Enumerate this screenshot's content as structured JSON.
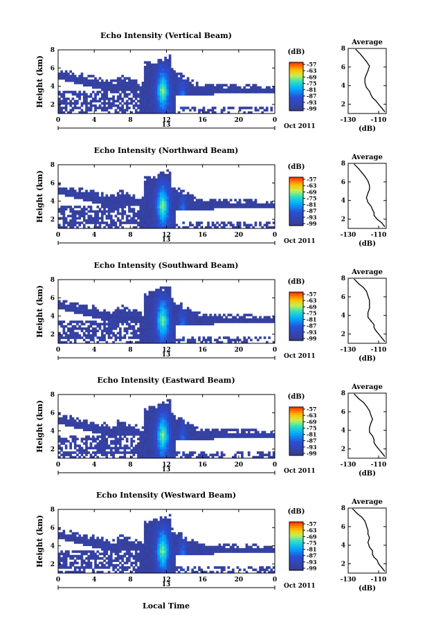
{
  "figure": {
    "xlabel": "Local Time",
    "date_label": "Oct 2011",
    "day_label": "13",
    "colorbar_unit": "(dB)",
    "colorbar_ticks": [
      "-57",
      "-63",
      "-69",
      "-75",
      "-81",
      "-87",
      "-93",
      "-99"
    ],
    "colors": {
      "low": "#3a3c8c",
      "mid": "#00aaff",
      "high": "#ff2a00",
      "panel_border": "#000000"
    }
  },
  "chart_data": [
    {
      "type": "heatmap",
      "title": "Echo Intensity (Vertical Beam)",
      "ylabel": "Height (km)",
      "xlim": [
        0,
        24
      ],
      "ylim": [
        1,
        8
      ],
      "xticks": [
        "0",
        "4",
        "8",
        "12",
        "16",
        "20",
        "0"
      ],
      "yticks": [
        "2",
        "4",
        "6",
        "8"
      ],
      "clim": [
        -99,
        -57
      ],
      "profile": {
        "title": "Average",
        "xlabel": "(dB)",
        "xlim": [
          -130,
          -105
        ],
        "xticks": [
          "-130",
          "-110"
        ],
        "yticks": [
          "2",
          "4",
          "6",
          "8"
        ],
        "x": [
          -125,
          -122,
          -120,
          -118,
          -116,
          -117,
          -118,
          -119,
          -119,
          -118,
          -116,
          -115,
          -114,
          -112,
          -110,
          -108,
          -106
        ],
        "y": [
          7.9,
          7.4,
          7.0,
          6.6,
          6.1,
          5.6,
          5.2,
          4.8,
          4.3,
          3.8,
          3.4,
          3.0,
          2.7,
          2.4,
          2.0,
          1.6,
          1.2
        ]
      }
    },
    {
      "type": "heatmap",
      "title": "Echo Intensity (Northward Beam)",
      "ylabel": "Height (km)",
      "xlim": [
        0,
        24
      ],
      "ylim": [
        1,
        8
      ],
      "xticks": [
        "0",
        "4",
        "8",
        "12",
        "16",
        "20",
        "0"
      ],
      "yticks": [
        "2",
        "4",
        "6",
        "8"
      ],
      "clim": [
        -99,
        -57
      ],
      "profile": {
        "title": "Average",
        "xlabel": "(dB)",
        "xlim": [
          -130,
          -105
        ],
        "xticks": [
          "-130",
          "-110"
        ],
        "yticks": [
          "2",
          "4",
          "6",
          "8"
        ],
        "x": [
          -126,
          -123,
          -121,
          -119,
          -117,
          -116,
          -116,
          -117,
          -118,
          -117,
          -115,
          -114,
          -113,
          -113,
          -111,
          -108,
          -106
        ],
        "y": [
          7.9,
          7.4,
          7.0,
          6.6,
          6.1,
          5.6,
          5.2,
          4.8,
          4.3,
          3.8,
          3.4,
          3.0,
          2.7,
          2.4,
          2.0,
          1.6,
          1.2
        ]
      }
    },
    {
      "type": "heatmap",
      "title": "Echo Intensity (Southward Beam)",
      "ylabel": "Height (km)",
      "xlim": [
        0,
        24
      ],
      "ylim": [
        1,
        8
      ],
      "xticks": [
        "0",
        "4",
        "8",
        "12",
        "16",
        "20",
        "0"
      ],
      "yticks": [
        "2",
        "4",
        "6",
        "8"
      ],
      "clim": [
        -99,
        -57
      ],
      "profile": {
        "title": "Average",
        "xlabel": "(dB)",
        "xlim": [
          -130,
          -105
        ],
        "xticks": [
          "-130",
          "-110"
        ],
        "yticks": [
          "2",
          "4",
          "6",
          "8"
        ],
        "x": [
          -126,
          -123,
          -120,
          -118,
          -117,
          -116,
          -116,
          -116,
          -117,
          -117,
          -115,
          -113,
          -113,
          -112,
          -110,
          -108,
          -106
        ],
        "y": [
          7.9,
          7.4,
          7.0,
          6.6,
          6.1,
          5.6,
          5.2,
          4.8,
          4.3,
          3.8,
          3.4,
          3.0,
          2.7,
          2.4,
          2.0,
          1.6,
          1.2
        ]
      }
    },
    {
      "type": "heatmap",
      "title": "Echo Intensity (Eastward Beam)",
      "ylabel": "Height (km)",
      "xlim": [
        0,
        24
      ],
      "ylim": [
        1,
        8
      ],
      "xticks": [
        "0",
        "4",
        "8",
        "12",
        "16",
        "20",
        "0"
      ],
      "yticks": [
        "2",
        "4",
        "6",
        "8"
      ],
      "clim": [
        -99,
        -57
      ],
      "profile": {
        "title": "Average",
        "xlabel": "(dB)",
        "xlim": [
          -130,
          -105
        ],
        "xticks": [
          "-130",
          "-110"
        ],
        "yticks": [
          "2",
          "4",
          "6",
          "8"
        ],
        "x": [
          -126,
          -123,
          -120,
          -118,
          -116,
          -115,
          -114,
          -115,
          -116,
          -116,
          -114,
          -113,
          -113,
          -112,
          -110,
          -108,
          -106
        ],
        "y": [
          7.9,
          7.4,
          7.0,
          6.6,
          6.1,
          5.6,
          5.2,
          4.8,
          4.3,
          3.8,
          3.4,
          3.0,
          2.7,
          2.4,
          2.0,
          1.6,
          1.2
        ]
      }
    },
    {
      "type": "heatmap",
      "title": "Echo Intensity (Westward Beam)",
      "ylabel": "Height (km)",
      "xlim": [
        0,
        24
      ],
      "ylim": [
        1,
        8
      ],
      "xticks": [
        "0",
        "4",
        "8",
        "12",
        "16",
        "20",
        "0"
      ],
      "yticks": [
        "2",
        "4",
        "6",
        "8"
      ],
      "clim": [
        -99,
        -57
      ],
      "profile": {
        "title": "Average",
        "xlabel": "(dB)",
        "xlim": [
          -130,
          -105
        ],
        "xticks": [
          "-130",
          "-110"
        ],
        "yticks": [
          "2",
          "4",
          "6",
          "8"
        ],
        "x": [
          -127,
          -124,
          -121,
          -119,
          -118,
          -117,
          -117,
          -116,
          -117,
          -116,
          -114,
          -114,
          -113,
          -111,
          -110,
          -108,
          -106
        ],
        "y": [
          7.9,
          7.4,
          7.0,
          6.6,
          6.1,
          5.6,
          5.2,
          4.8,
          4.3,
          3.8,
          3.4,
          3.0,
          2.7,
          2.4,
          2.0,
          1.6,
          1.2
        ]
      }
    }
  ]
}
